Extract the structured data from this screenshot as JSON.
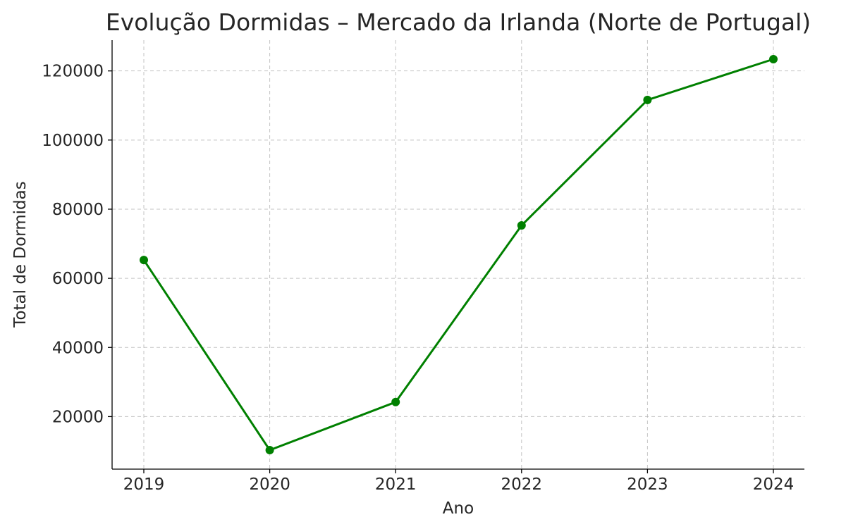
{
  "chart_data": {
    "type": "line",
    "title": "Evolução Dormidas – Mercado da Irlanda (Norte de Portugal)",
    "xlabel": "Ano",
    "ylabel": "Total de Dormidas",
    "categories": [
      "2019",
      "2020",
      "2021",
      "2022",
      "2023",
      "2024"
    ],
    "series": [
      {
        "values": [
          65300,
          10300,
          24200,
          75300,
          111600,
          123400
        ],
        "color": "#008000",
        "marker": "circle"
      }
    ],
    "yticks": [
      20000,
      40000,
      60000,
      80000,
      100000,
      120000
    ],
    "ytick_labels": [
      "20000",
      "40000",
      "60000",
      "80000",
      "100000",
      "120000"
    ],
    "ylim": [
      4800,
      128900
    ],
    "grid": true
  }
}
